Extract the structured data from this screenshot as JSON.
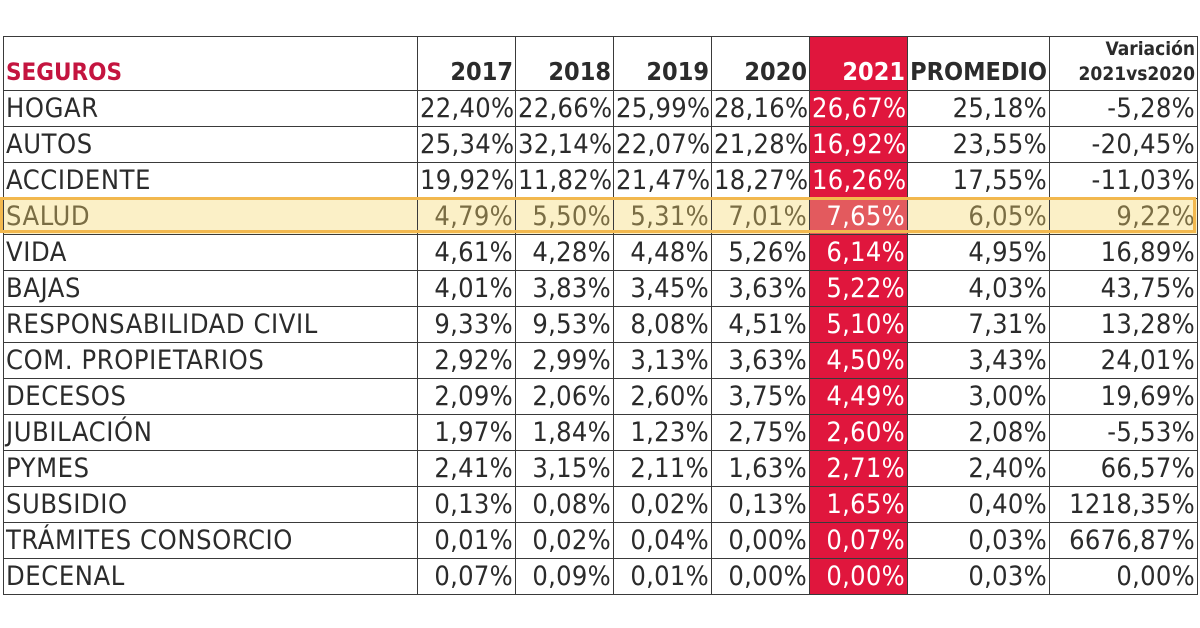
{
  "table": {
    "headers": {
      "name": "SEGUROS",
      "y2017": "2017",
      "y2018": "2018",
      "y2019": "2019",
      "y2020": "2020",
      "y2021": "2021",
      "promedio": "PROMEDIO",
      "variacion_line1": "Variación",
      "variacion_line2": "2021vs2020"
    },
    "rows": [
      {
        "name": "HOGAR",
        "y2017": "22,40%",
        "y2018": "22,66%",
        "y2019": "25,99%",
        "y2020": "28,16%",
        "y2021": "26,67%",
        "promedio": "25,18%",
        "variacion": "-5,28%"
      },
      {
        "name": "AUTOS",
        "y2017": "25,34%",
        "y2018": "32,14%",
        "y2019": "22,07%",
        "y2020": "21,28%",
        "y2021": "16,92%",
        "promedio": "23,55%",
        "variacion": "-20,45%"
      },
      {
        "name": "ACCIDENTE",
        "y2017": "19,92%",
        "y2018": "11,82%",
        "y2019": "21,47%",
        "y2020": "18,27%",
        "y2021": "16,26%",
        "promedio": "17,55%",
        "variacion": "-11,03%"
      },
      {
        "name": "SALUD",
        "y2017": "4,79%",
        "y2018": "5,50%",
        "y2019": "5,31%",
        "y2020": "7,01%",
        "y2021": "7,65%",
        "promedio": "6,05%",
        "variacion": "9,22%"
      },
      {
        "name": "VIDA",
        "y2017": "4,61%",
        "y2018": "4,28%",
        "y2019": "4,48%",
        "y2020": "5,26%",
        "y2021": "6,14%",
        "promedio": "4,95%",
        "variacion": "16,89%"
      },
      {
        "name": "BAJAS",
        "y2017": "4,01%",
        "y2018": "3,83%",
        "y2019": "3,45%",
        "y2020": "3,63%",
        "y2021": "5,22%",
        "promedio": "4,03%",
        "variacion": "43,75%"
      },
      {
        "name": "RESPONSABILIDAD CIVIL",
        "y2017": "9,33%",
        "y2018": "9,53%",
        "y2019": "8,08%",
        "y2020": "4,51%",
        "y2021": "5,10%",
        "promedio": "7,31%",
        "variacion": "13,28%"
      },
      {
        "name": "COM. PROPIETARIOS",
        "y2017": "2,92%",
        "y2018": "2,99%",
        "y2019": "3,13%",
        "y2020": "3,63%",
        "y2021": "4,50%",
        "promedio": "3,43%",
        "variacion": "24,01%"
      },
      {
        "name": "DECESOS",
        "y2017": "2,09%",
        "y2018": "2,06%",
        "y2019": "2,60%",
        "y2020": "3,75%",
        "y2021": "4,49%",
        "promedio": "3,00%",
        "variacion": "19,69%"
      },
      {
        "name": "JUBILACIÓN",
        "y2017": "1,97%",
        "y2018": "1,84%",
        "y2019": "1,23%",
        "y2020": "2,75%",
        "y2021": "2,60%",
        "promedio": "2,08%",
        "variacion": "-5,53%"
      },
      {
        "name": "PYMES",
        "y2017": "2,41%",
        "y2018": "3,15%",
        "y2019": "2,11%",
        "y2020": "1,63%",
        "y2021": "2,71%",
        "promedio": "2,40%",
        "variacion": "66,57%"
      },
      {
        "name": "SUBSIDIO",
        "y2017": "0,13%",
        "y2018": "0,08%",
        "y2019": "0,02%",
        "y2020": "0,13%",
        "y2021": "1,65%",
        "promedio": "0,40%",
        "variacion": "1218,35%"
      },
      {
        "name": "TRÁMITES CONSORCIO",
        "y2017": "0,01%",
        "y2018": "0,02%",
        "y2019": "0,04%",
        "y2020": "0,00%",
        "y2021": "0,07%",
        "promedio": "0,03%",
        "variacion": "6676,87%"
      },
      {
        "name": "DECENAL",
        "y2017": "0,07%",
        "y2018": "0,09%",
        "y2019": "0,01%",
        "y2020": "0,00%",
        "y2021": "0,00%",
        "promedio": "0,03%",
        "variacion": "0,00%"
      }
    ],
    "highlighted_row": "SALUD",
    "colors": {
      "accent_red": "#e0163d",
      "title_red": "#c4143f",
      "row_highlight_fill": "#fbf0c7",
      "row_highlight_border": "#f2b84e",
      "text": "#2b2b2b"
    }
  }
}
